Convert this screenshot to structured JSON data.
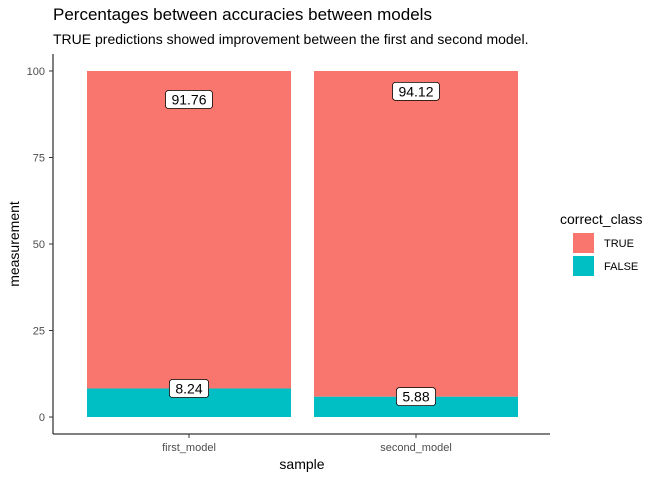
{
  "chart_data": {
    "type": "bar",
    "stacked": true,
    "title": "Percentages between accuracies between models",
    "subtitle": "TRUE predictions showed improvement between the first and second model.",
    "xlabel": "sample",
    "ylabel": "measurement",
    "categories": [
      "first_model",
      "second_model"
    ],
    "series": [
      {
        "name": "TRUE",
        "color": "#F8766D",
        "values": [
          91.76,
          94.12
        ],
        "labels": [
          "91.76",
          "94.12"
        ]
      },
      {
        "name": "FALSE",
        "color": "#00BFC4",
        "values": [
          8.24,
          5.88
        ],
        "labels": [
          "8.24",
          "5.88"
        ]
      }
    ],
    "ylim": [
      0,
      100
    ],
    "yticks": [
      0,
      25,
      50,
      75,
      100
    ],
    "grid": false,
    "legend": {
      "title": "correct_class",
      "position": "right",
      "items": [
        "TRUE",
        "FALSE"
      ]
    }
  }
}
